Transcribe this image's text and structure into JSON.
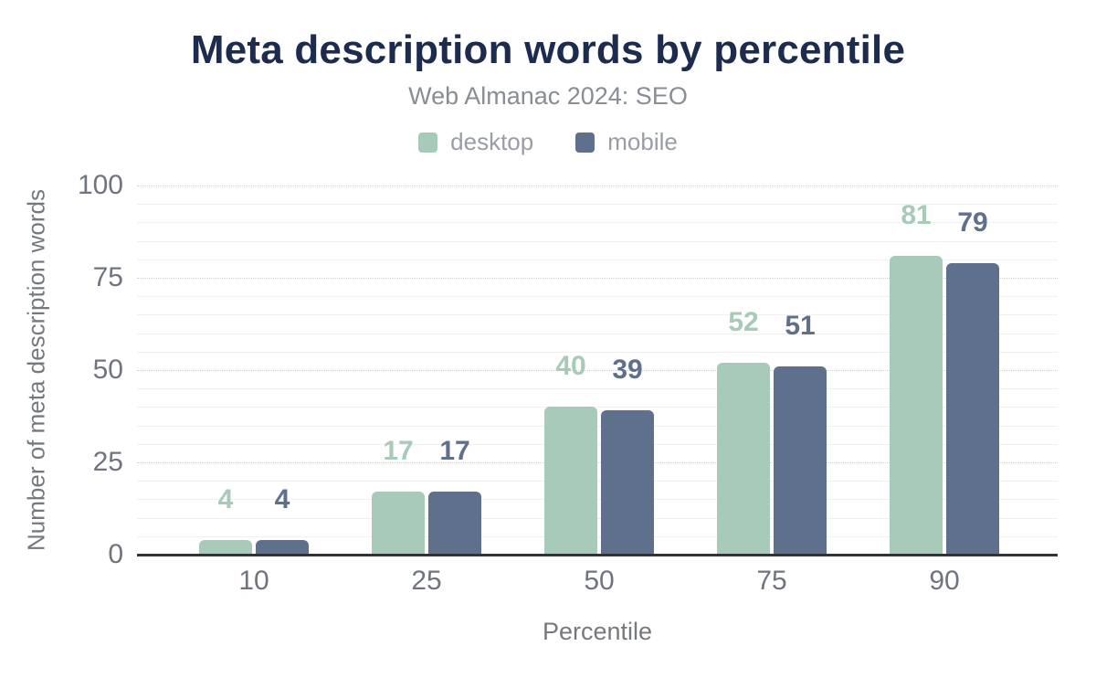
{
  "chart_data": {
    "type": "bar",
    "title": "Meta description words by percentile",
    "subtitle": "Web Almanac 2024: SEO",
    "xlabel": "Percentile",
    "ylabel": "Number of meta description words",
    "categories": [
      "10",
      "25",
      "50",
      "75",
      "90"
    ],
    "series": [
      {
        "name": "desktop",
        "color": "#a8cab8",
        "values": [
          4,
          17,
          40,
          52,
          81
        ]
      },
      {
        "name": "mobile",
        "color": "#5f708d",
        "values": [
          4,
          17,
          39,
          51,
          79
        ]
      }
    ],
    "ylim": [
      0,
      100
    ],
    "yticks": [
      0,
      25,
      50,
      75,
      100
    ],
    "minor_grid_step": 5,
    "grid": "on",
    "legend_position": "top",
    "value_labels": "above-bars"
  },
  "style": {
    "title_color": "#1d2c4e",
    "subtitle_color": "#898d94",
    "tick_label_color": "#6f747e",
    "axis_title_color": "#75797f",
    "legend_text_color": "#999da5",
    "axis_line_color": "#303338",
    "major_grid_color": "#cfd1d5",
    "minor_grid_color": "#f0f0f2",
    "background_color": "#ffffff"
  }
}
